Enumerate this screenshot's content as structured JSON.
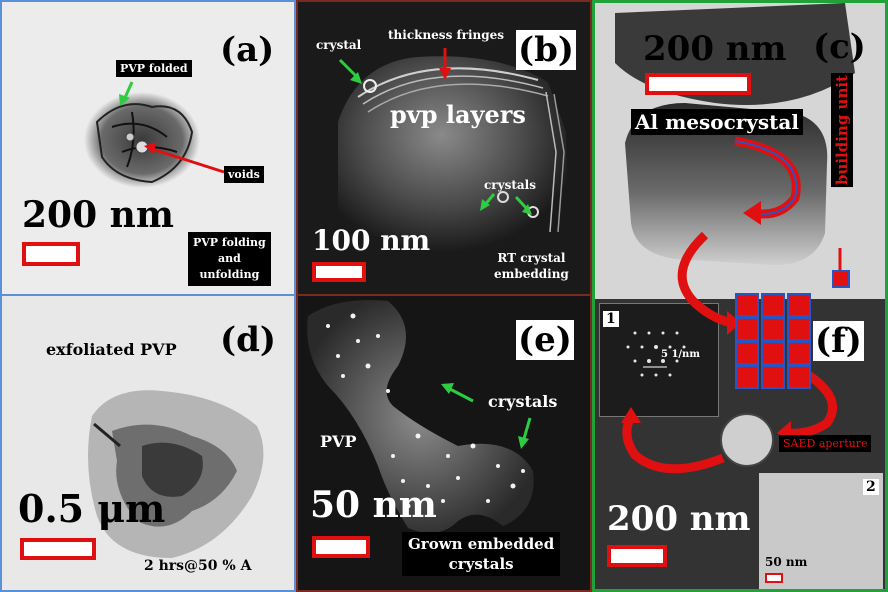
{
  "panels": {
    "a": {
      "label": "(a)",
      "annotation_folded": "PVP folded",
      "annotation_voids": "voids",
      "scale": "200 nm",
      "caption_line1": "PVP folding",
      "caption_line2": "and",
      "caption_line3": "unfolding",
      "border_color": "#5b8fd6"
    },
    "b": {
      "label": "(b)",
      "annotation_crystal": "crystal",
      "annotation_fringes": "thickness fringes",
      "title": "pvp layers",
      "annotation_crystals": "crystals",
      "scale": "100 nm",
      "caption_line1": "RT crystal",
      "caption_line2": "embedding",
      "border_color": "#7a2a1e"
    },
    "c": {
      "label": "(c)",
      "scale": "200 nm",
      "title": "Al mesocrystal",
      "building_unit": "building unit",
      "border_color": "#22a03a"
    },
    "d": {
      "label": "(d)",
      "title": "exfoliated PVP",
      "scale": "0.5 μm",
      "caption": "2 hrs@50 % A"
    },
    "e": {
      "label": "(e)",
      "annotation_crystals": "crystals",
      "annotation_pvp": "PVP",
      "scale": "50 nm",
      "caption_line1": "Grown embedded",
      "caption_line2": "crystals"
    },
    "f": {
      "label": "(f)",
      "inset1_label": "1",
      "inset1_scale": "5 1/nm",
      "aperture": "SAED aperture",
      "scale": "200 nm",
      "inset2_label": "2",
      "inset2_scale": "50 nm"
    }
  },
  "colors": {
    "scale_bar": "#e01010",
    "arrow_red": "#e01010",
    "arrow_green": "#2ecc40",
    "block_fill": "#e01010",
    "block_edge": "#2a55c0"
  }
}
